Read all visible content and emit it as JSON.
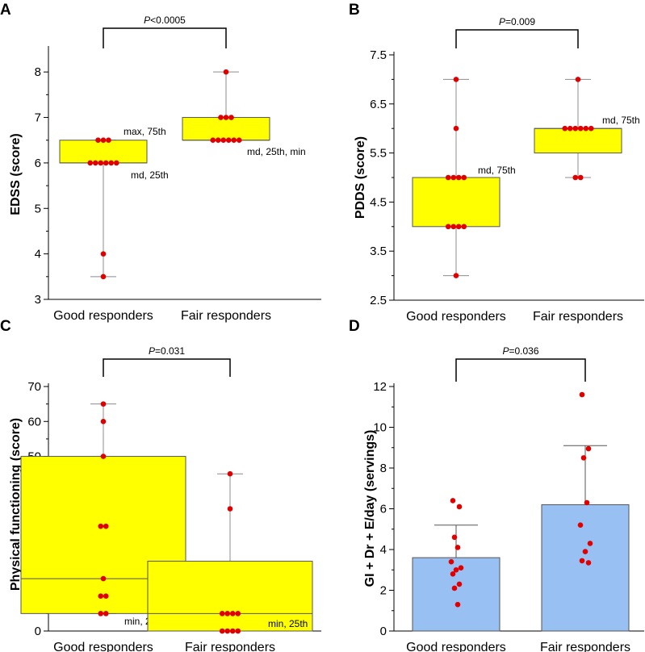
{
  "chart_data": [
    {
      "panel": "A",
      "type": "box",
      "ylabel": "EDSS (score)",
      "ylim": [
        3,
        8.5
      ],
      "yticks": [
        3,
        4,
        5,
        6,
        7,
        8
      ],
      "ytick_labels": [
        "3",
        "4",
        "5",
        "6",
        "7",
        "8"
      ],
      "categories": [
        "Good responders",
        "Fair responders"
      ],
      "groups": [
        {
          "min": 3.5,
          "q1": 6,
          "median": 6,
          "q3": 6.5,
          "max": 6.5,
          "points": [
            6.5,
            6.5,
            6.5,
            6,
            6,
            6,
            6,
            6,
            6,
            4,
            3.5
          ],
          "annotations": [
            "max, 75th",
            "md, 25th"
          ]
        },
        {
          "min": 6.5,
          "q1": 6.5,
          "median": 6.5,
          "q3": 7,
          "max": 8,
          "points": [
            8,
            7,
            7,
            7,
            6.5,
            6.5,
            6.5,
            6.5,
            6.5,
            6.5
          ],
          "annotations": [
            "md, 25th, min"
          ]
        }
      ],
      "p_label": "P",
      "p_value": "<0.0005"
    },
    {
      "panel": "B",
      "type": "box",
      "ylabel": "PDDS (score)",
      "ylim": [
        2.5,
        7.5
      ],
      "yticks": [
        2.5,
        3.5,
        4.5,
        5.5,
        6.5,
        7.5
      ],
      "ytick_labels": [
        "2.5",
        "3.5",
        "4.5",
        "5.5",
        "6.5",
        "7.5"
      ],
      "categories": [
        "Good responders",
        "Fair responders"
      ],
      "groups": [
        {
          "min": 3,
          "q1": 4,
          "median": 5,
          "q3": 5,
          "max": 7,
          "points": [
            7,
            6,
            5,
            5,
            5,
            5,
            4,
            4,
            4,
            4,
            3
          ],
          "annotations": [
            "md, 75th"
          ]
        },
        {
          "min": 5,
          "q1": 5.5,
          "median": 6,
          "q3": 6,
          "max": 7,
          "points": [
            7,
            6,
            6,
            6,
            6,
            6,
            6,
            5,
            5
          ],
          "annotations": [
            "md, 75th"
          ]
        }
      ],
      "p_label": "P",
      "p_value": "=0.009"
    },
    {
      "panel": "C",
      "type": "box",
      "ylabel": "Physical functioning (score)",
      "ylim": [
        0,
        70
      ],
      "yticks": [
        0,
        10,
        20,
        30,
        40,
        50,
        60,
        70
      ],
      "ytick_labels": [
        "0",
        "10",
        "20",
        "30",
        "40",
        "50",
        "60",
        "70"
      ],
      "categories": [
        "Good responders",
        "Fair responders"
      ],
      "groups": [
        {
          "min": 5,
          "q1": 5,
          "median": 15,
          "q3": 50,
          "max": 65,
          "points": [
            65,
            60,
            50,
            30,
            30,
            15,
            10,
            10,
            5,
            5
          ],
          "annotations": [
            "min, 25th"
          ]
        },
        {
          "min": 0,
          "q1": 0,
          "median": 5,
          "q3": 20,
          "max": 45,
          "points": [
            45,
            35,
            5,
            5,
            5,
            5,
            0,
            0,
            0,
            0
          ],
          "annotations": [
            "min, 25th"
          ]
        }
      ],
      "p_label": "P",
      "p_value": "=0.031"
    },
    {
      "panel": "D",
      "type": "bar",
      "ylabel": "GI + Dr + E/day (servings)",
      "ylim": [
        0,
        12
      ],
      "yticks": [
        0,
        2,
        4,
        6,
        8,
        10,
        12
      ],
      "ytick_labels": [
        "0",
        "2",
        "4",
        "6",
        "8",
        "10",
        "12"
      ],
      "categories": [
        "Good responders",
        "Fair responders"
      ],
      "groups": [
        {
          "mean": 3.6,
          "err_upper": 5.2,
          "points": [
            6.4,
            6.1,
            4.6,
            4.1,
            3.4,
            3.1,
            3.0,
            2.8,
            2.3,
            2.1,
            1.3
          ]
        },
        {
          "mean": 6.2,
          "err_upper": 9.1,
          "points": [
            11.6,
            8.95,
            8.5,
            6.3,
            5.2,
            4.3,
            3.9,
            3.45,
            3.35
          ]
        }
      ],
      "p_label": "P",
      "p_value": "=0.036"
    }
  ]
}
